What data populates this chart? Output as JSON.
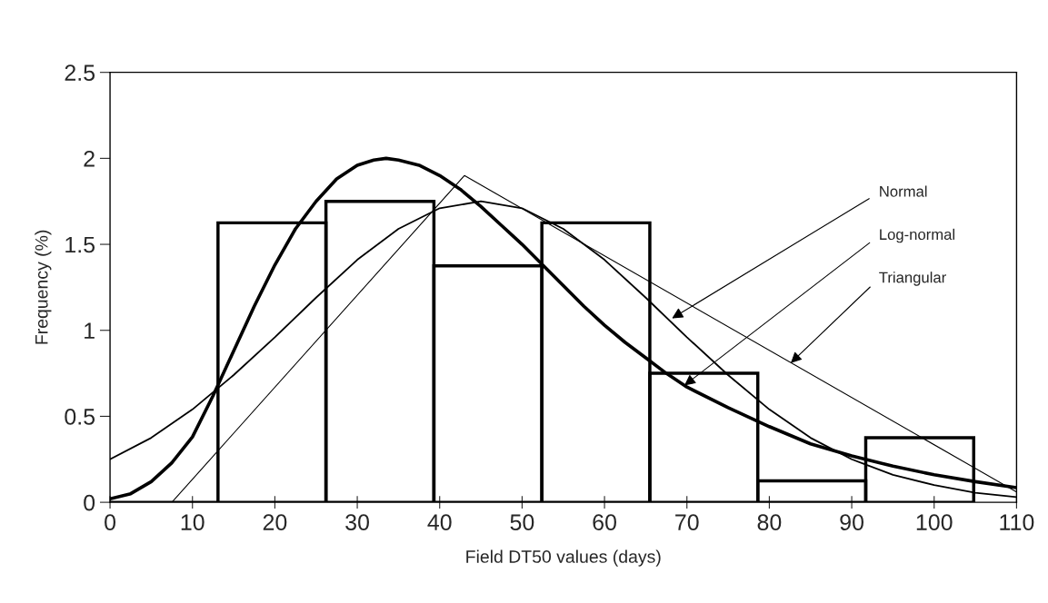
{
  "chart_data": {
    "type": "histogram",
    "xlabel": "Field DT50 values (days)",
    "ylabel": "Frequency (%)",
    "bins": [
      0,
      13.1,
      26.2,
      39.3,
      52.4,
      65.5,
      78.6,
      91.7,
      104.8
    ],
    "values": [
      0,
      1.625,
      1.75,
      1.375,
      1.625,
      0.75,
      0.125,
      0.375
    ],
    "color": "#000000",
    "series": [
      {
        "type": "line",
        "color": "#000000",
        "line_style": "solid",
        "x": [
          0,
          5,
          10,
          15,
          20,
          25,
          30,
          35,
          40,
          45,
          50,
          55,
          60,
          65,
          70,
          75,
          80,
          85,
          90,
          95,
          100,
          105,
          110
        ],
        "values": [
          0.25,
          0.375,
          0.54,
          0.74,
          0.96,
          1.19,
          1.41,
          1.59,
          1.71,
          1.75,
          1.71,
          1.59,
          1.41,
          1.19,
          0.96,
          0.74,
          0.54,
          0.375,
          0.25,
          0.16,
          0.1,
          0.055,
          0.03
        ]
      },
      {
        "type": "line",
        "color": "#000000",
        "line_style": "solid",
        "x": [
          0,
          2.5,
          5,
          7.5,
          10,
          12.5,
          15,
          17.5,
          20,
          22.5,
          25,
          27.5,
          30,
          32,
          33.5,
          35,
          37.5,
          40,
          42.5,
          45,
          47.5,
          50,
          52.5,
          55,
          57.5,
          60,
          62.5,
          65,
          67.5,
          70,
          75,
          80,
          85,
          90,
          95,
          100,
          105,
          110
        ],
        "values": [
          0.02,
          0.05,
          0.12,
          0.23,
          0.38,
          0.62,
          0.88,
          1.14,
          1.38,
          1.59,
          1.75,
          1.88,
          1.96,
          1.99,
          2.0,
          1.99,
          1.96,
          1.9,
          1.82,
          1.72,
          1.61,
          1.5,
          1.38,
          1.26,
          1.14,
          1.03,
          0.93,
          0.84,
          0.75,
          0.67,
          0.55,
          0.44,
          0.34,
          0.27,
          0.21,
          0.16,
          0.12,
          0.085
        ]
      },
      {
        "type": "line",
        "color": "#000000",
        "line_style": "solid",
        "x": [
          7.5,
          43,
          110
        ],
        "values": [
          0,
          1.9,
          0.06
        ]
      }
    ],
    "annotations": [
      {
        "text": "Normal",
        "x": 68.2,
        "y": 1.07
      },
      {
        "text": "Log-normal",
        "x": 69.7,
        "y": 0.68
      },
      {
        "text": "Triangular",
        "x": 82.6,
        "y": 0.81
      }
    ],
    "xlim": [
      0,
      110
    ],
    "xticks": [
      0,
      10,
      20,
      30,
      40,
      50,
      60,
      70,
      80,
      90,
      100,
      110
    ],
    "ylim": [
      0,
      2.5
    ],
    "yticks": [
      0,
      0.5,
      1,
      1.5,
      2,
      2.5
    ],
    "grid": false,
    "legend": false
  }
}
